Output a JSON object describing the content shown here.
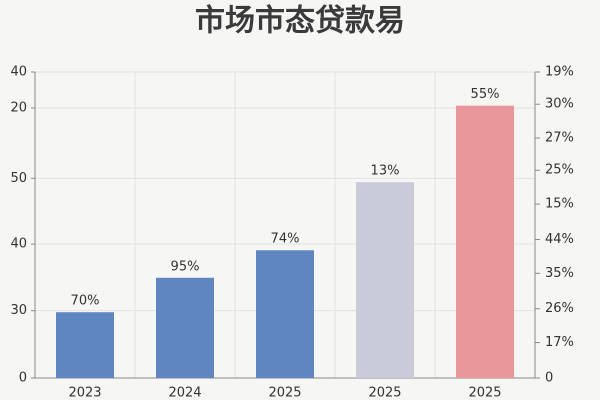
{
  "chart_data": {
    "type": "bar",
    "title": "市场市态贷款易",
    "categories": [
      "2023",
      "2024",
      "2025",
      "2025",
      "2025"
    ],
    "values": [
      8.6,
      13.1,
      16.7,
      25.6,
      35.6
    ],
    "bar_labels": [
      "70%",
      "95%",
      "74%",
      "13%",
      "55%"
    ],
    "colors": [
      "#5f86c1",
      "#5f86c1",
      "#5f86c1",
      "#c9cbd8",
      "#e9979b"
    ],
    "ylim": [
      0,
      40
    ],
    "yticks": [
      0,
      {
        "value": 8.8,
        "label": "30"
      },
      {
        "value": 17.5,
        "label": "40"
      },
      {
        "value": 26.1,
        "label": "50"
      },
      {
        "value": 35.3,
        "label": "20"
      },
      40
    ],
    "y2lim": [
      0,
      19
    ],
    "y2ticks": [
      0,
      {
        "value": 2.2,
        "label": "17%"
      },
      {
        "value": 4.3,
        "label": "26%"
      },
      {
        "value": 6.5,
        "label": "35%"
      },
      {
        "value": 8.6,
        "label": "44%"
      },
      {
        "value": 10.8,
        "label": "15%"
      },
      {
        "value": 12.9,
        "label": "25%"
      },
      {
        "value": 14.9,
        "label": "27%"
      },
      {
        "value": 17.0,
        "label": "30%"
      },
      {
        "value": 19,
        "label": "19%"
      }
    ],
    "grid": true
  }
}
